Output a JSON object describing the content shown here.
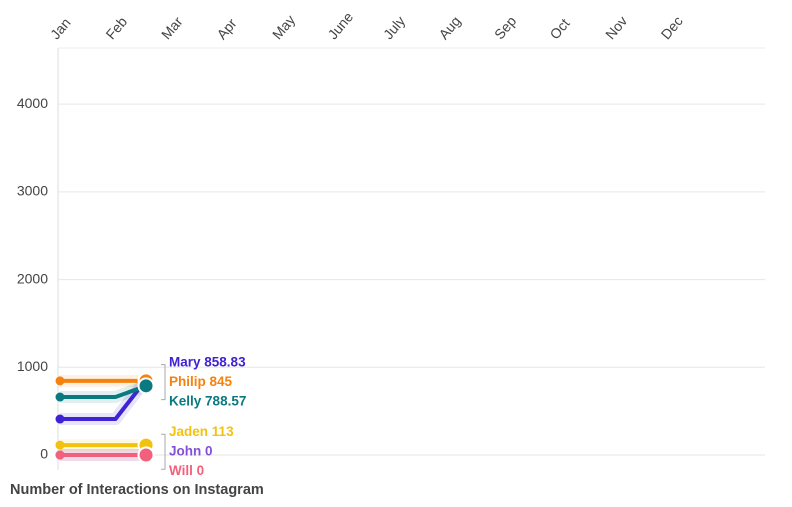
{
  "chart_data": {
    "type": "line",
    "title": "Number of Interactions on Instagram",
    "x": [
      0,
      1,
      1.55
    ],
    "xlim": [
      0,
      12.7
    ],
    "xticks": [
      {
        "value": 0,
        "label": "Jan"
      },
      {
        "value": 1,
        "label": "Feb"
      },
      {
        "value": 2,
        "label": "Mar"
      },
      {
        "value": 3,
        "label": "Apr"
      },
      {
        "value": 4,
        "label": "May"
      },
      {
        "value": 5,
        "label": "June"
      },
      {
        "value": 6,
        "label": "July"
      },
      {
        "value": 7,
        "label": "Aug"
      },
      {
        "value": 8,
        "label": "Sep"
      },
      {
        "value": 9,
        "label": "Oct"
      },
      {
        "value": 10,
        "label": "Nov"
      },
      {
        "value": 11,
        "label": "Dec"
      }
    ],
    "ylim": [
      0,
      4640
    ],
    "yticks": [
      0,
      1000,
      2000,
      3000,
      4000
    ],
    "grid": true,
    "series": [
      {
        "name": "Mary",
        "color": "#3f22d4",
        "values": [
          410,
          410,
          858.83
        ]
      },
      {
        "name": "Philip",
        "color": "#f5820d",
        "values": [
          845,
          845,
          845
        ]
      },
      {
        "name": "Kelly",
        "color": "#0b7a80",
        "values": [
          661,
          661,
          788.57
        ]
      },
      {
        "name": "Jaden",
        "color": "#f2c20f",
        "values": [
          113,
          113,
          113
        ]
      },
      {
        "name": "John",
        "color": "#8350d8",
        "values": [
          0,
          0,
          0
        ]
      },
      {
        "name": "Will",
        "color": "#f2607c",
        "values": [
          0,
          0,
          0
        ]
      }
    ]
  }
}
